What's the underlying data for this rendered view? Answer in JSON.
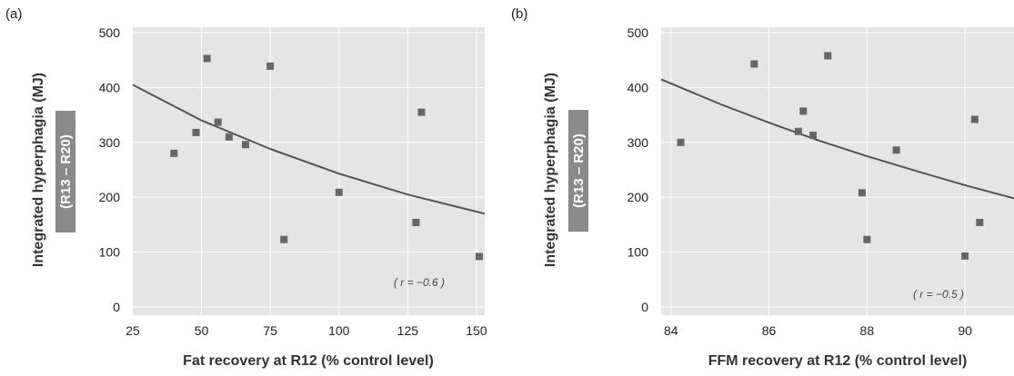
{
  "chart_data": [
    {
      "type": "scatter",
      "panel_label": "(a)",
      "title": "",
      "xlabel": "Fat recovery at R12  (% control level)",
      "ylabel": "Integrated hyperphagia (MJ)",
      "ylabel_badge": "(R13 – R20)",
      "annotation": "( r = −0.6 )",
      "xlim": [
        25,
        153
      ],
      "ylim": [
        -15,
        510
      ],
      "x_ticks": [
        25,
        50,
        75,
        100,
        125,
        150
      ],
      "y_ticks": [
        0,
        100,
        200,
        300,
        400,
        500
      ],
      "grid": true,
      "colors": {
        "plot_bg": "#e5e5e5",
        "marker": "#666666",
        "curve": "#555555",
        "grid": "#ffffff"
      },
      "series": [
        {
          "x": [
            40,
            48,
            52,
            56,
            60,
            66,
            75,
            80,
            100,
            128,
            130,
            151
          ],
          "y": [
            280,
            318,
            453,
            337,
            310,
            296,
            439,
            123,
            209,
            154,
            355,
            92
          ]
        }
      ],
      "trend_curve": {
        "x": [
          25,
          50,
          75,
          100,
          125,
          153
        ],
        "y": [
          405,
          340,
          288,
          243,
          205,
          170
        ]
      }
    },
    {
      "type": "scatter",
      "panel_label": "(b)",
      "title": "",
      "xlabel": "FFM  recovery at R12  (% control level)",
      "ylabel": "Integrated hyperphagia (MJ)",
      "ylabel_badge": "(R13 – R20)",
      "annotation": "( r = −0.5 )",
      "xlim": [
        83.8,
        91.0
      ],
      "ylim": [
        -15,
        510
      ],
      "x_ticks": [
        84,
        86,
        88,
        90
      ],
      "y_ticks": [
        0,
        100,
        200,
        300,
        400,
        500
      ],
      "grid": true,
      "colors": {
        "plot_bg": "#e5e5e5",
        "marker": "#666666",
        "curve": "#555555",
        "grid": "#ffffff"
      },
      "series": [
        {
          "x": [
            84.2,
            85.7,
            86.6,
            86.7,
            86.9,
            87.2,
            87.9,
            88.0,
            88.6,
            90.0,
            90.2,
            90.3
          ],
          "y": [
            300,
            443,
            320,
            357,
            313,
            458,
            208,
            123,
            286,
            93,
            342,
            154
          ]
        }
      ],
      "trend_curve": {
        "x": [
          83.8,
          85,
          86,
          87,
          88,
          89,
          90,
          91.0
        ],
        "y": [
          415,
          370,
          336,
          304,
          275,
          248,
          222,
          198
        ]
      }
    }
  ]
}
